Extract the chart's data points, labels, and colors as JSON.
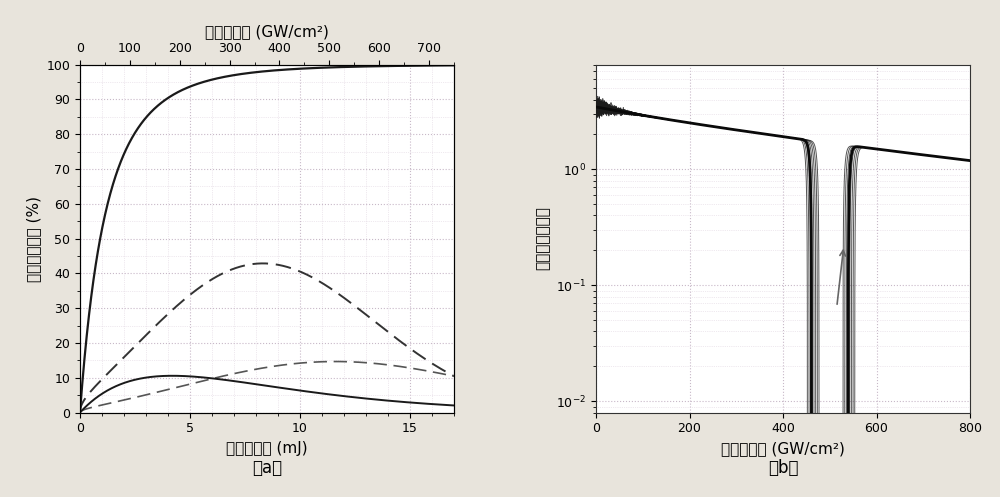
{
  "title_a_top": "基频光强度 (GW/cm²)",
  "xlabel_a": "基频光能量 (mJ)",
  "ylabel_a": "频率转换效率 (%)",
  "caption_a": "（a）",
  "xlabel_b": "基频光强度 (GW/cm²)",
  "ylabel_b": "相对能量抖动比",
  "caption_b": "（b）",
  "bg_color": "#ffffff",
  "fig_bg": "#e8e4dc",
  "grid_major_color": "#c8b8c8",
  "grid_minor_color": "#e0d4e0",
  "intensity_ticks": [
    0,
    100,
    200,
    300,
    400,
    500,
    600,
    700
  ],
  "energy_max": 17.0,
  "intensity_max": 750.0,
  "yticks_a": [
    0,
    10,
    20,
    30,
    40,
    50,
    60,
    70,
    80,
    90,
    100
  ],
  "xticks_a": [
    0,
    5,
    10,
    15
  ],
  "xticks_b": [
    0,
    200,
    400,
    600,
    800
  ],
  "xlim_b": [
    0,
    800
  ],
  "ylim_b_log": [
    -2.3,
    0.7
  ]
}
